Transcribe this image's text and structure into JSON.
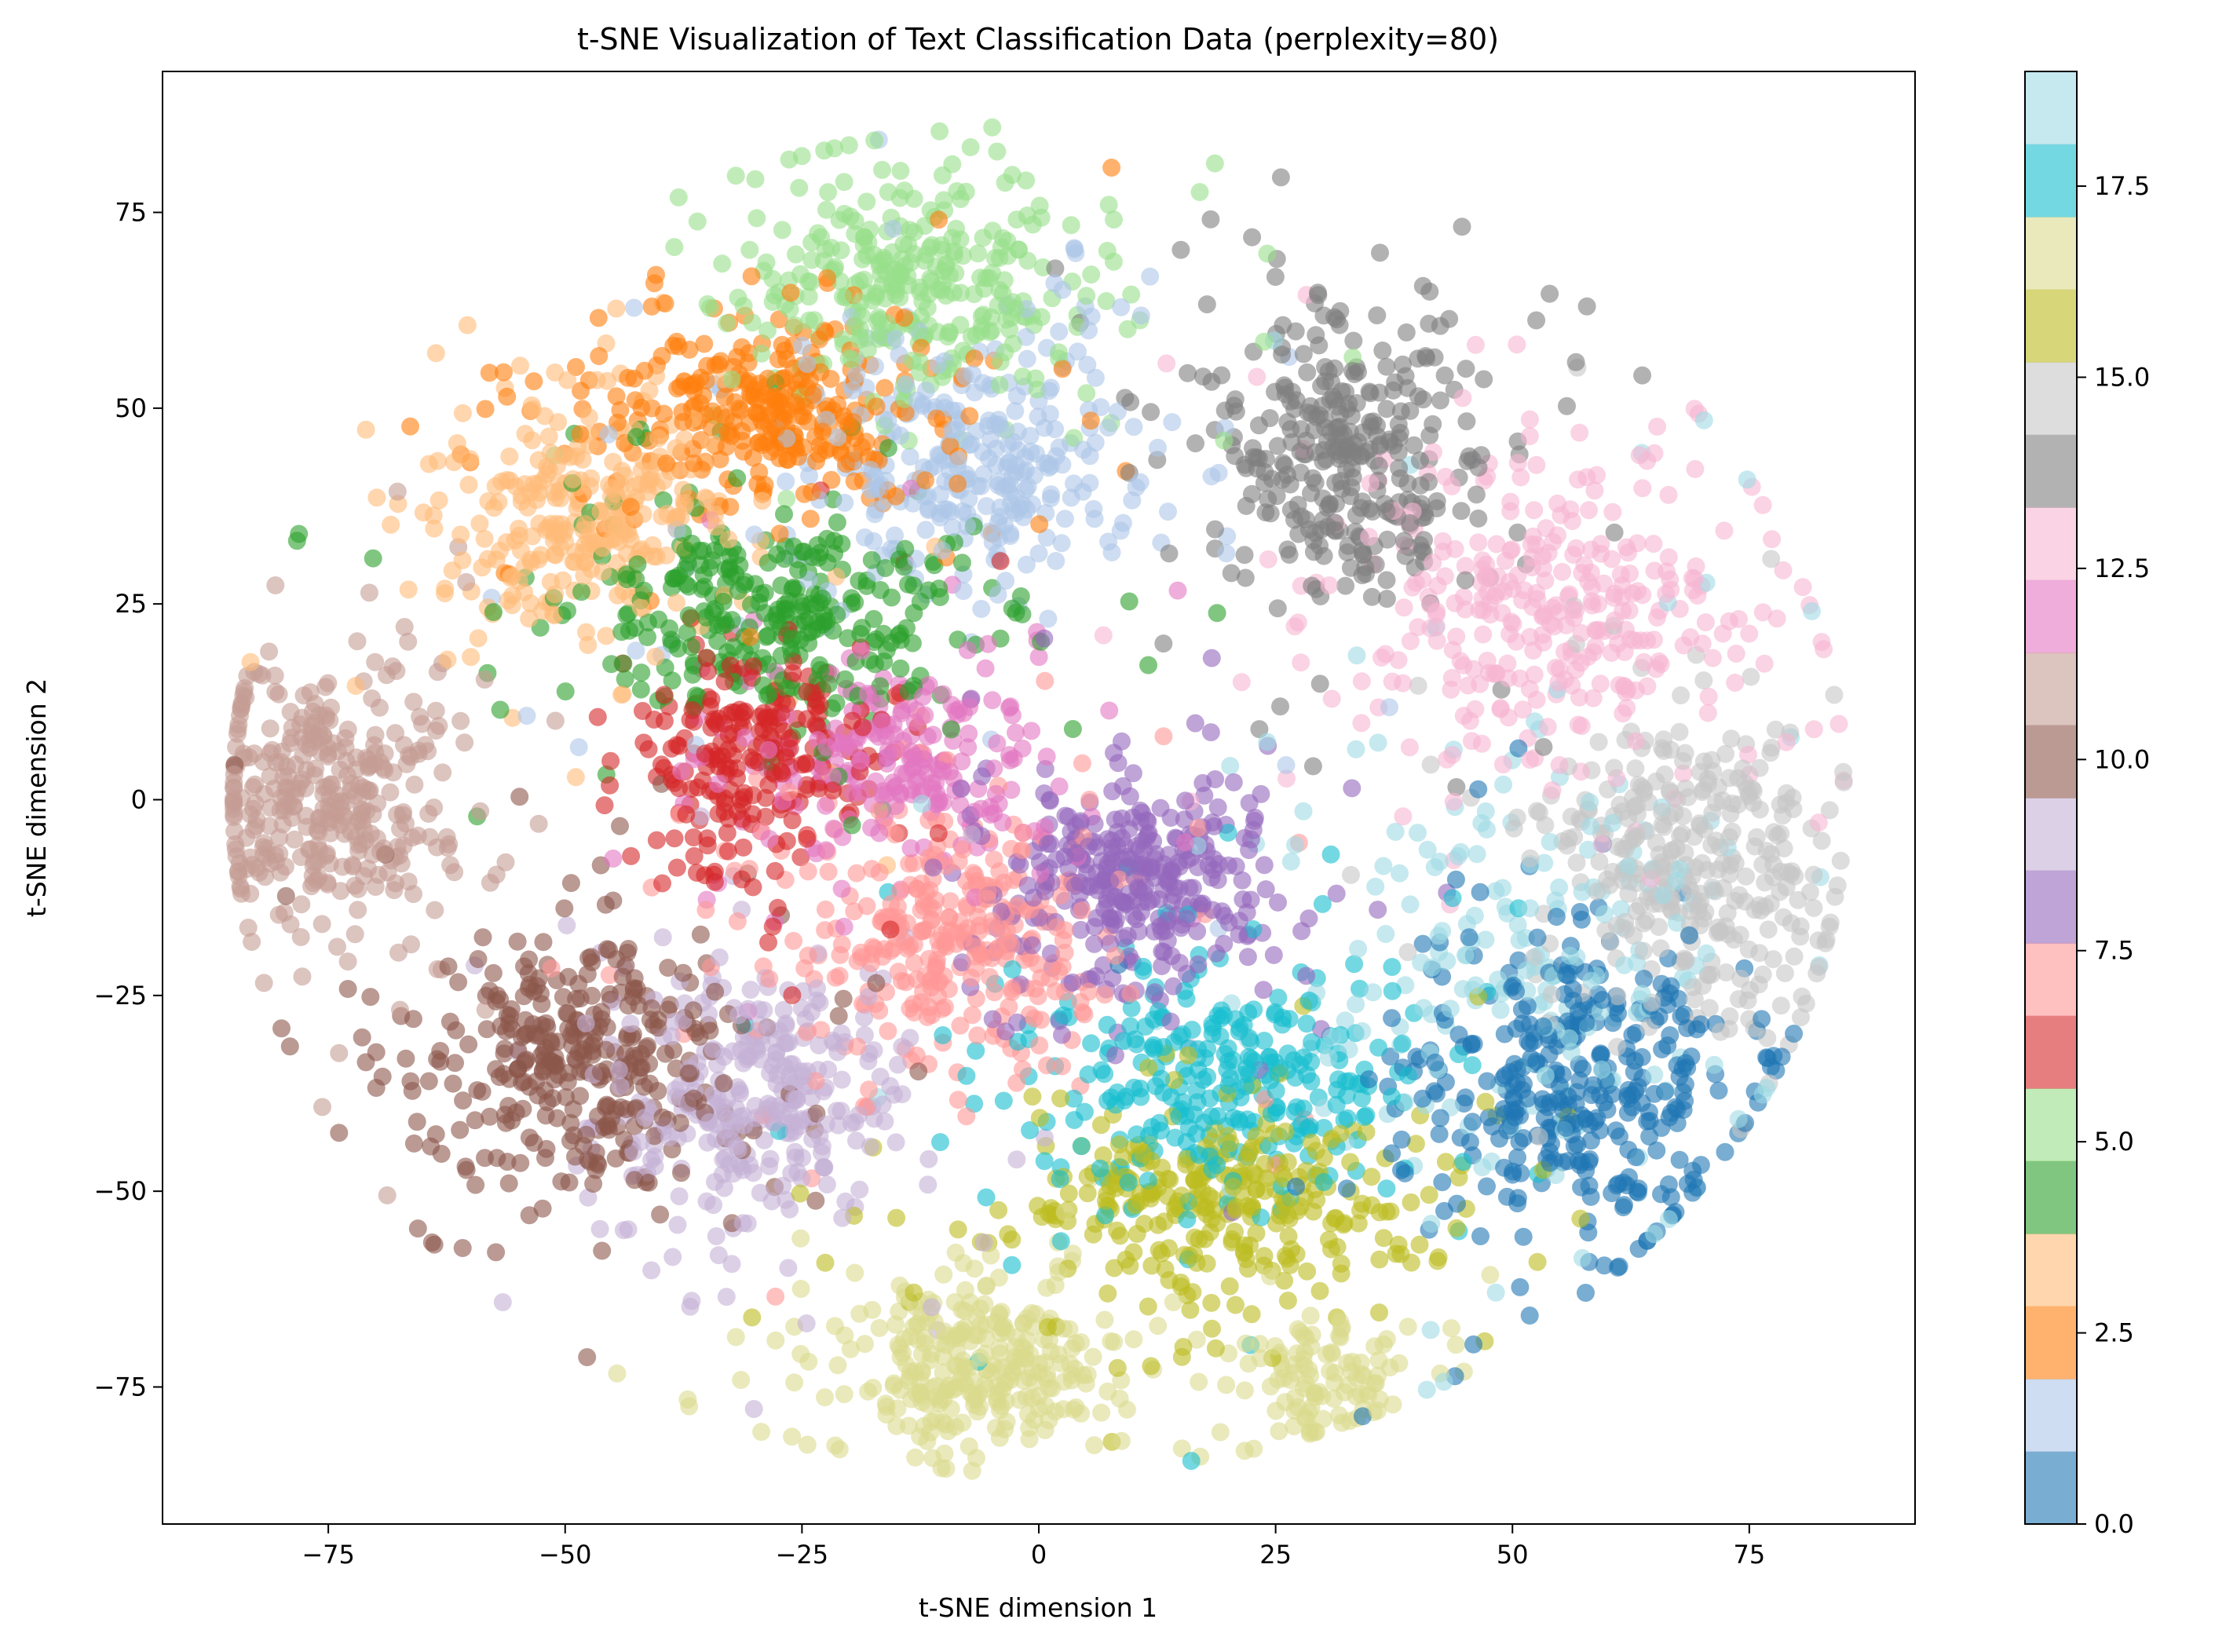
{
  "chart_data": {
    "type": "scatter",
    "title": "t-SNE Visualization of Text Classification Data (perplexity=80)",
    "xlabel": "t-SNE dimension 1",
    "ylabel": "t-SNE dimension 2",
    "xlim": [
      -92.5,
      92.5
    ],
    "ylim": [
      -92.5,
      93
    ],
    "xticks": [
      -75,
      -50,
      -25,
      0,
      25,
      50,
      75
    ],
    "xtick_labels": [
      "−75",
      "−50",
      "−25",
      "0",
      "25",
      "50",
      "75"
    ],
    "yticks": [
      -75,
      -50,
      -25,
      0,
      25,
      50,
      75
    ],
    "ytick_labels": [
      "−75",
      "−50",
      "−25",
      "0",
      "25",
      "50",
      "75"
    ],
    "grid": false,
    "marker_alpha": 0.6,
    "colormap": "tab20",
    "colorbar": {
      "vmin": 0,
      "vmax": 19,
      "ticks": [
        0,
        2.5,
        5,
        7.5,
        10,
        12.5,
        15,
        17.5
      ],
      "tick_labels": [
        "0.0",
        "2.5",
        "5.0",
        "7.5",
        "10.0",
        "12.5",
        "15.0",
        "17.5"
      ],
      "colors": [
        "#1f77b4",
        "#aec7e8",
        "#ff7f0e",
        "#ffbb78",
        "#2ca02c",
        "#98df8a",
        "#d62728",
        "#ff9896",
        "#9467bd",
        "#c5b0d5",
        "#8c564b",
        "#c49c94",
        "#e377c2",
        "#f7b6d2",
        "#7f7f7f",
        "#c7c7c7",
        "#bcbd22",
        "#dbdb8d",
        "#17becf",
        "#9edae5"
      ]
    },
    "clusters": [
      {
        "label": 0,
        "center": [
          57,
          -37
        ],
        "spread": [
          8,
          9
        ],
        "n": 360
      },
      {
        "label": 1,
        "center": [
          -8,
          43
        ],
        "spread": [
          9,
          9
        ],
        "n": 320
      },
      {
        "label": 2,
        "center": [
          -28,
          50
        ],
        "spread": [
          9,
          6
        ],
        "n": 320
      },
      {
        "label": 3,
        "center": [
          -48,
          36
        ],
        "spread": [
          7,
          7
        ],
        "n": 300
      },
      {
        "label": 4,
        "center": [
          -28,
          24
        ],
        "spread": [
          10,
          6
        ],
        "n": 320
      },
      {
        "label": 5,
        "center": [
          -14,
          66
        ],
        "spread": [
          9,
          7
        ],
        "n": 320
      },
      {
        "label": 6,
        "center": [
          -30,
          5
        ],
        "spread": [
          6,
          7
        ],
        "n": 240
      },
      {
        "label": 7,
        "center": [
          -10,
          -18
        ],
        "spread": [
          8,
          8
        ],
        "n": 340
      },
      {
        "label": 8,
        "center": [
          10,
          -10
        ],
        "spread": [
          7,
          6
        ],
        "n": 340
      },
      {
        "label": 9,
        "center": [
          -31,
          -38
        ],
        "spread": [
          7,
          8
        ],
        "n": 320
      },
      {
        "label": 10,
        "center": [
          -48,
          -33
        ],
        "spread": [
          8,
          8
        ],
        "n": 360
      },
      {
        "label": 11,
        "center": [
          -75,
          0
        ],
        "spread": [
          6,
          8
        ],
        "n": 360
      },
      {
        "label": 12,
        "center": [
          -15,
          5
        ],
        "spread": [
          8,
          6
        ],
        "n": 240
      },
      {
        "label": 13,
        "center": [
          55,
          25
        ],
        "spread": [
          10,
          8
        ],
        "n": 340
      },
      {
        "label": 14,
        "center": [
          33,
          45
        ],
        "spread": [
          7,
          9
        ],
        "n": 340
      },
      {
        "label": 15,
        "center": [
          70,
          -8
        ],
        "spread": [
          8,
          9
        ],
        "n": 340
      },
      {
        "label": 16,
        "center": [
          20,
          -52
        ],
        "spread": [
          10,
          6
        ],
        "n": 320
      },
      {
        "label": 17,
        "center": [
          -6,
          -72
        ],
        "spread": [
          7,
          5
        ],
        "n": 300
      },
      {
        "label": 18,
        "center": [
          20,
          -35
        ],
        "spread": [
          10,
          8
        ],
        "n": 300
      },
      {
        "label": 19,
        "center": [
          50,
          -20
        ],
        "spread": [
          12,
          16
        ],
        "n": 220
      },
      {
        "label": 17,
        "center": [
          29,
          -73
        ],
        "spread": [
          5,
          4
        ],
        "n": 110
      }
    ]
  }
}
